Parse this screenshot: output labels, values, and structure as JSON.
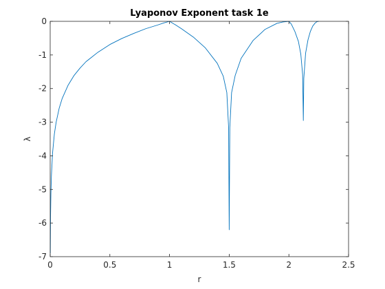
{
  "chart_data": {
    "type": "line",
    "title": "Lyaponov Exponent task 1e",
    "xlabel": "r",
    "ylabel": "λ",
    "xlim": [
      0,
      2.5
    ],
    "ylim": [
      -7,
      0
    ],
    "xticks": [
      0,
      0.5,
      1,
      1.5,
      2,
      2.5
    ],
    "yticks": [
      0,
      -1,
      -2,
      -3,
      -4,
      -5,
      -6,
      -7
    ],
    "xtick_labels": [
      "0",
      "0.5",
      "1",
      "1.5",
      "2",
      "2.5"
    ],
    "ytick_labels": [
      "0",
      "-1",
      "-2",
      "-3",
      "-4",
      "-5",
      "-6",
      "-7"
    ],
    "grid": false,
    "box": true,
    "series": [
      {
        "color": "#0072BD",
        "x": [
          0.001,
          0.003,
          0.006,
          0.01,
          0.02,
          0.035,
          0.05,
          0.075,
          0.1,
          0.15,
          0.2,
          0.25,
          0.3,
          0.4,
          0.5,
          0.6,
          0.7,
          0.8,
          0.9,
          0.95,
          1.0,
          1.05,
          1.1,
          1.2,
          1.3,
          1.4,
          1.45,
          1.48,
          1.495,
          1.5,
          1.505,
          1.52,
          1.55,
          1.6,
          1.7,
          1.8,
          1.9,
          1.95,
          2.0,
          2.02,
          2.05,
          2.08,
          2.1,
          2.115,
          2.121,
          2.125,
          2.14,
          2.16,
          2.18,
          2.2,
          2.22,
          2.235,
          2.25
        ],
        "y": [
          -6.9,
          -5.81,
          -5.12,
          -4.61,
          -3.91,
          -3.35,
          -3.0,
          -2.59,
          -2.3,
          -1.9,
          -1.61,
          -1.39,
          -1.2,
          -0.92,
          -0.69,
          -0.51,
          -0.36,
          -0.22,
          -0.11,
          -0.05,
          0.0,
          -0.105,
          -0.22,
          -0.47,
          -0.79,
          -1.25,
          -1.63,
          -2.12,
          -3.16,
          -6.2,
          -3.16,
          -2.12,
          -1.61,
          -1.1,
          -0.57,
          -0.24,
          -0.06,
          -0.02,
          0.0,
          -0.08,
          -0.3,
          -0.6,
          -0.98,
          -1.58,
          -2.95,
          -1.7,
          -0.95,
          -0.55,
          -0.3,
          -0.14,
          -0.05,
          -0.01,
          0.0
        ]
      }
    ]
  }
}
